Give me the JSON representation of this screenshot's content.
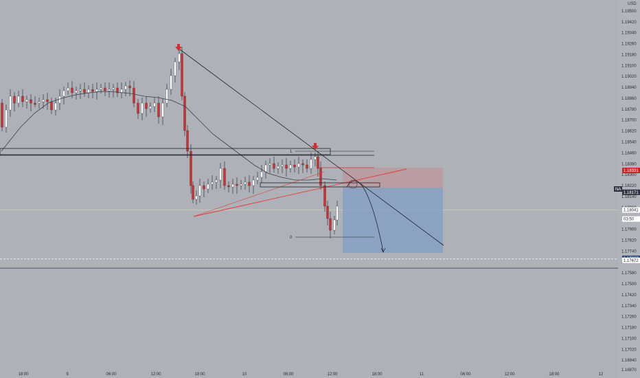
{
  "chart_data": {
    "type": "candlestick",
    "currency": "USD",
    "y_ticks": [
      "1.19500",
      "1.19420",
      "1.19340",
      "1.19260",
      "1.19180",
      "1.19100",
      "1.19020",
      "1.18940",
      "1.18860",
      "1.18780",
      "1.18700",
      "1.18620",
      "1.18540",
      "1.18460",
      "1.18380",
      "1.18300",
      "1.18220",
      "1.18140",
      "1.18060",
      "1.17980",
      "1.17900",
      "1.17820",
      "1.17740",
      "1.17660",
      "1.17580",
      "1.17500",
      "1.17420",
      "1.17340",
      "1.17260",
      "1.17180",
      "1.17100",
      "1.17020",
      "1.16940",
      "1.16870"
    ],
    "x_ticks": [
      "18:00",
      "9",
      "06:00",
      "12:00",
      "18:00",
      "10",
      "06:00",
      "12:00",
      "18:00",
      "11",
      "06:00",
      "12:00",
      "18:00",
      "12"
    ],
    "ylim": [
      1.1681,
      1.1958
    ],
    "price_tags": [
      {
        "label": "1.18331",
        "value": 1.18331,
        "color": "#c62828",
        "text_color": "#ffffff"
      },
      {
        "label": "NA",
        "value": 1.18195,
        "color": "#2f3542",
        "text_color": "#ffffff"
      },
      {
        "label": "1.18171",
        "value": 1.18171,
        "color": "#2f3542",
        "text_color": "#ffffff"
      },
      {
        "label": "1.18041",
        "value": 1.18041,
        "color": "#ffffff",
        "text_color": "#2b2e36"
      },
      {
        "label": "03:50",
        "value": 1.17975,
        "color": "#ffffff",
        "text_color": "#2b2e36"
      },
      {
        "label": "1.17687",
        "value": 1.17687,
        "color": "#2f4a7a",
        "text_color": "#ffffff"
      },
      {
        "label": "1.17672",
        "value": 1.17672,
        "color": "#ffffff",
        "text_color": "#2b2e36"
      }
    ],
    "levels": [
      {
        "name": "support-zone-top",
        "value": 1.18433
      },
      {
        "name": "support-zone-bottom",
        "value": 1.18418
      },
      {
        "name": "lower-level",
        "value": 1.17615
      },
      {
        "name": "dashed-level",
        "value": 1.17682
      },
      {
        "name": "current-price",
        "value": 1.18041
      }
    ],
    "fib_labels": [
      "1",
      "0"
    ],
    "colors": {
      "up": "#ffffff",
      "down": "#d32f2f",
      "background": "#aeb1b7",
      "ma": "#3b3f46",
      "risk": "#c48a94",
      "reward": "#7f9ec6",
      "trend_red": "#e53935"
    }
  }
}
